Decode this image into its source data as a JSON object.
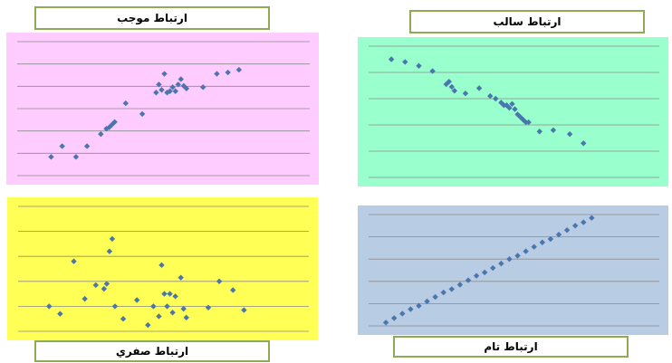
{
  "colors": {
    "marker": "#4a76ad",
    "gridline": "#8c8c8c",
    "title_border": "#8faa55",
    "positive_bg": "#ffccff",
    "negative_bg": "#99ffcc",
    "zero_bg": "#ffff55",
    "perfect_bg": "#b8cce4"
  },
  "chart_data": [
    {
      "id": "positive",
      "type": "scatter",
      "title": "ارتباط موجب",
      "background": "#ffccff",
      "grid": true,
      "marker": "diamond",
      "xlim": [
        0,
        100
      ],
      "ylim": [
        0,
        100
      ],
      "gridlines": 7,
      "x": [
        9,
        13,
        18,
        22,
        27,
        29,
        30,
        31,
        32,
        36,
        42,
        47,
        48,
        49,
        50,
        51,
        52,
        53,
        54,
        55,
        56,
        57,
        58,
        64,
        69,
        73,
        77
      ],
      "y": [
        14,
        22,
        14,
        22,
        31,
        35,
        36,
        38,
        40,
        54,
        46,
        62,
        68,
        64,
        76,
        62,
        63,
        66,
        63,
        68,
        72,
        67,
        65,
        66,
        76,
        77,
        79
      ]
    },
    {
      "id": "negative",
      "type": "scatter",
      "title": "ارتباط سالب",
      "background": "#99ffcc",
      "grid": true,
      "marker": "diamond",
      "xlim": [
        0,
        100
      ],
      "ylim": [
        0,
        100
      ],
      "gridlines": 6,
      "x": [
        5,
        10,
        15,
        20,
        25,
        26,
        27,
        28,
        32,
        37,
        41,
        43,
        45,
        46,
        47,
        48,
        49,
        50,
        51,
        52,
        53,
        54,
        55,
        59,
        64,
        70,
        75
      ],
      "y": [
        90,
        88,
        85,
        81,
        71,
        73,
        69,
        66,
        64,
        68,
        62,
        60,
        57,
        55,
        55,
        53,
        56,
        52,
        48,
        46,
        44,
        42,
        42,
        35,
        36,
        33,
        26
      ]
    },
    {
      "id": "zero",
      "type": "scatter",
      "title": "ارتباط صفري",
      "background": "#ffff55",
      "grid": true,
      "marker": "diamond",
      "xlim": [
        0,
        100
      ],
      "ylim": [
        0,
        100
      ],
      "gridlines": 6,
      "x": [
        8,
        12,
        17,
        21,
        25,
        28,
        29,
        30,
        31,
        32,
        35,
        40,
        44,
        46,
        48,
        49,
        50,
        51,
        52,
        53,
        54,
        56,
        57,
        58,
        66,
        70,
        75,
        79
      ],
      "y": [
        20,
        14,
        56,
        26,
        37,
        34,
        38,
        64,
        74,
        20,
        10,
        25,
        5,
        20,
        12,
        53,
        30,
        20,
        30,
        15,
        28,
        43,
        18,
        11,
        19,
        40,
        33,
        17
      ]
    },
    {
      "id": "perfect",
      "type": "scatter",
      "title": "ارتباط تام",
      "background": "#b8cce4",
      "grid": true,
      "marker": "diamond",
      "xlim": [
        0,
        100
      ],
      "ylim": [
        0,
        100
      ],
      "gridlines": 6,
      "x": [
        3,
        6,
        9,
        12,
        15,
        18,
        21,
        24,
        27,
        30,
        33,
        36,
        39,
        42,
        45,
        48,
        51,
        54,
        57,
        60,
        63,
        66,
        69,
        72,
        75,
        78
      ],
      "y": [
        3,
        7,
        11,
        15,
        18,
        22,
        26,
        30,
        33,
        37,
        41,
        45,
        48,
        52,
        56,
        60,
        63,
        67,
        71,
        75,
        78,
        82,
        86,
        90,
        93,
        97
      ]
    }
  ]
}
